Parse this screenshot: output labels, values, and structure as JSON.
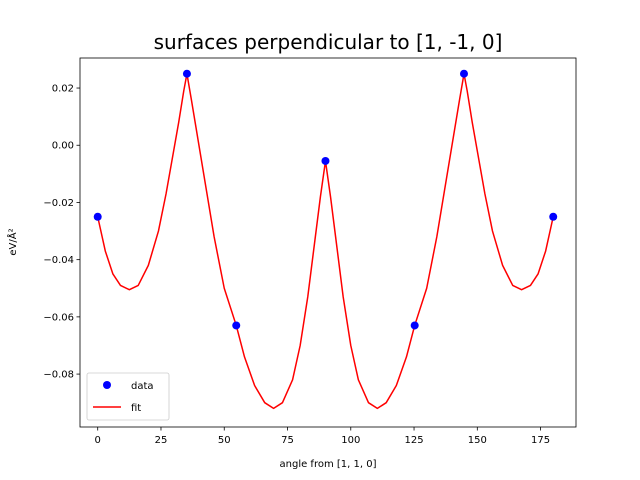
{
  "chart_data": {
    "type": "line",
    "title": "surfaces perpendicular to [1, -1, 0]",
    "xlabel": "angle from [1, 1, 0]",
    "ylabel": "eV/Å²",
    "xlim": [
      -7,
      189
    ],
    "ylim": [
      -0.0985,
      0.0305
    ],
    "xticks": [
      0,
      25,
      50,
      75,
      100,
      125,
      150,
      175
    ],
    "yticks": [
      -0.08,
      -0.06,
      -0.04,
      -0.02,
      0.0,
      0.02
    ],
    "ytick_labels": [
      "−0.08",
      "−0.06",
      "−0.04",
      "−0.02",
      "0.00",
      "0.02"
    ],
    "grid": false,
    "legend_placement": "lower-left",
    "series": [
      {
        "name": "data",
        "kind": "scatter",
        "color": "#0000ff",
        "x": [
          0,
          35.26,
          54.74,
          90,
          125.26,
          144.74,
          180
        ],
        "y": [
          -0.025,
          0.025,
          -0.063,
          -0.0055,
          -0.063,
          0.025,
          -0.025
        ]
      },
      {
        "name": "fit",
        "kind": "line",
        "color": "#ff0000",
        "x": [
          0,
          3,
          6,
          9,
          12.5,
          16,
          20,
          24,
          27,
          30,
          32,
          34,
          35.26,
          37,
          40,
          43,
          46,
          50,
          54.74,
          58,
          62,
          66,
          69.5,
          73,
          77,
          80,
          83,
          86,
          88,
          90,
          92,
          94,
          97,
          100,
          103,
          107,
          110.5,
          114,
          118,
          122,
          125.26,
          130,
          134,
          137,
          140,
          143,
          144.74,
          146,
          148,
          150,
          153,
          156,
          160,
          164,
          167.5,
          171,
          174,
          177,
          180
        ],
        "y": [
          -0.025,
          -0.037,
          -0.045,
          -0.049,
          -0.0505,
          -0.049,
          -0.042,
          -0.03,
          -0.017,
          -0.002,
          0.008,
          0.019,
          0.025,
          0.016,
          0.0,
          -0.016,
          -0.032,
          -0.05,
          -0.063,
          -0.074,
          -0.084,
          -0.09,
          -0.092,
          -0.09,
          -0.082,
          -0.07,
          -0.053,
          -0.032,
          -0.018,
          -0.0055,
          -0.018,
          -0.032,
          -0.053,
          -0.07,
          -0.082,
          -0.09,
          -0.092,
          -0.09,
          -0.084,
          -0.074,
          -0.063,
          -0.05,
          -0.032,
          -0.016,
          0.0,
          0.016,
          0.025,
          0.019,
          0.008,
          -0.002,
          -0.017,
          -0.03,
          -0.042,
          -0.049,
          -0.0505,
          -0.049,
          -0.045,
          -0.037,
          -0.025
        ]
      }
    ]
  }
}
